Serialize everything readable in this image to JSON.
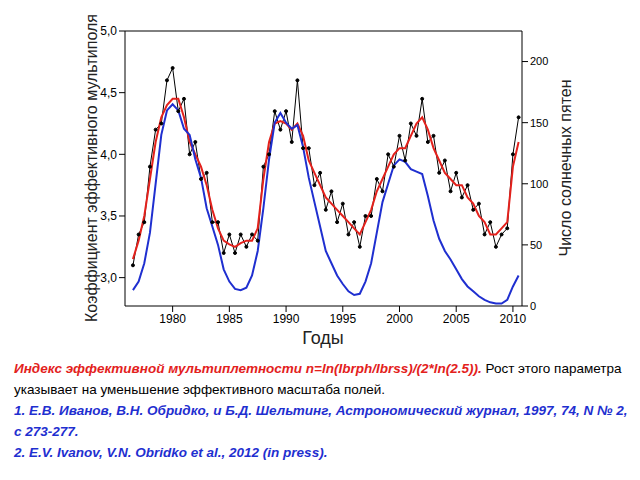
{
  "chart_data": {
    "type": "line",
    "xlabel": "Годы",
    "ylabel": "Коэффициент эффективного мультиполя",
    "y2label": "Число солнечных пятен",
    "x": [
      1976.5,
      1977,
      1977.5,
      1978,
      1978.5,
      1979,
      1979.5,
      1980,
      1980.5,
      1981,
      1981.5,
      1982,
      1982.5,
      1983,
      1983.5,
      1984,
      1984.5,
      1985,
      1985.5,
      1986,
      1986.5,
      1987,
      1987.5,
      1988,
      1988.5,
      1989,
      1989.5,
      1990,
      1990.5,
      1991,
      1991.5,
      1992,
      1992.5,
      1993,
      1993.5,
      1994,
      1994.5,
      1995,
      1995.5,
      1996,
      1996.5,
      1997,
      1997.5,
      1998,
      1998.5,
      1999,
      1999.5,
      2000,
      2000.5,
      2001,
      2001.5,
      2002,
      2002.5,
      2003,
      2003.5,
      2004,
      2004.5,
      2005,
      2005.5,
      2006,
      2006.5,
      2007,
      2007.5,
      2008,
      2008.5,
      2009,
      2009.5,
      2010,
      2010.5
    ],
    "xlim": [
      1975.8,
      2010.8
    ],
    "xticks": [
      1980,
      1985,
      1990,
      1995,
      2000,
      2005,
      2010
    ],
    "ylim": [
      2.77,
      5.0
    ],
    "yticks": [
      {
        "value": 3.0,
        "label": "3,0"
      },
      {
        "value": 3.5,
        "label": "3,5"
      },
      {
        "value": 4.0,
        "label": "4,0"
      },
      {
        "value": 4.5,
        "label": "4,5"
      },
      {
        "value": 5.0,
        "label": "5,0"
      }
    ],
    "y2lim": [
      0,
      225
    ],
    "y2ticks": [
      0,
      50,
      100,
      150,
      200
    ],
    "grid": false,
    "series": [
      {
        "color": "#000000",
        "marker": "circle",
        "values": [
          3.1,
          3.35,
          3.45,
          3.9,
          4.2,
          4.25,
          4.6,
          4.7,
          4.35,
          4.45,
          4.0,
          4.1,
          3.8,
          3.85,
          3.45,
          3.45,
          3.2,
          3.35,
          3.2,
          3.35,
          3.25,
          3.35,
          3.3,
          3.9,
          4.0,
          4.35,
          4.2,
          4.35,
          4.1,
          4.6,
          4.05,
          4.05,
          3.75,
          3.85,
          3.55,
          3.7,
          3.45,
          3.6,
          3.35,
          3.45,
          3.25,
          3.5,
          3.5,
          3.8,
          3.7,
          4.0,
          3.9,
          4.15,
          3.95,
          4.25,
          4.15,
          4.45,
          4.1,
          4.15,
          3.85,
          3.95,
          3.7,
          3.85,
          3.65,
          3.75,
          3.55,
          3.6,
          3.35,
          3.45,
          3.25,
          3.35,
          3.4,
          4.0,
          4.3
        ]
      },
      {
        "color": "#e3211c",
        "values": [
          3.15,
          3.3,
          3.5,
          3.8,
          4.1,
          4.3,
          4.4,
          4.45,
          4.45,
          4.3,
          4.1,
          4.0,
          3.9,
          3.75,
          3.55,
          3.4,
          3.3,
          3.27,
          3.25,
          3.28,
          3.3,
          3.3,
          3.4,
          3.8,
          4.1,
          4.25,
          4.27,
          4.25,
          4.2,
          4.25,
          4.15,
          3.95,
          3.85,
          3.75,
          3.65,
          3.6,
          3.55,
          3.5,
          3.45,
          3.4,
          3.35,
          3.45,
          3.55,
          3.7,
          3.8,
          3.9,
          4.0,
          4.05,
          4.05,
          4.15,
          4.25,
          4.3,
          4.2,
          4.05,
          3.95,
          3.85,
          3.8,
          3.75,
          3.75,
          3.65,
          3.6,
          3.5,
          3.45,
          3.35,
          3.35,
          3.4,
          3.45,
          3.9,
          4.1
        ]
      },
      {
        "color": "#1f2fd0",
        "axis": "y2",
        "values": [
          13,
          20,
          35,
          60,
          100,
          140,
          160,
          165,
          160,
          145,
          140,
          120,
          105,
          80,
          65,
          50,
          30,
          20,
          14,
          13,
          15,
          25,
          45,
          80,
          120,
          150,
          158,
          150,
          145,
          148,
          130,
          105,
          85,
          65,
          45,
          35,
          25,
          18,
          12,
          9,
          10,
          20,
          35,
          60,
          85,
          100,
          115,
          120,
          118,
          112,
          110,
          108,
          90,
          70,
          55,
          45,
          38,
          30,
          22,
          16,
          12,
          8,
          5,
          3,
          2,
          2,
          5,
          16,
          25
        ]
      }
    ]
  },
  "caption": {
    "highlight": "Индекс эффективной мультиплетности   n=ln(Ibrph/Ibrss)/(2*ln(2.5)).",
    "text": " Рост этого параметра указывает на уменьшение эффективного масштаба полей.",
    "references": [
      "1. Е.В. Иванов, В.Н. Обридко, и Б.Д. Шельтинг, Астрономический журнал, 1997, 74, N № 2, с 273-277.",
      "2. E.V. Ivanov, V.N. Obridko et al., 2012 (in press)."
    ]
  }
}
